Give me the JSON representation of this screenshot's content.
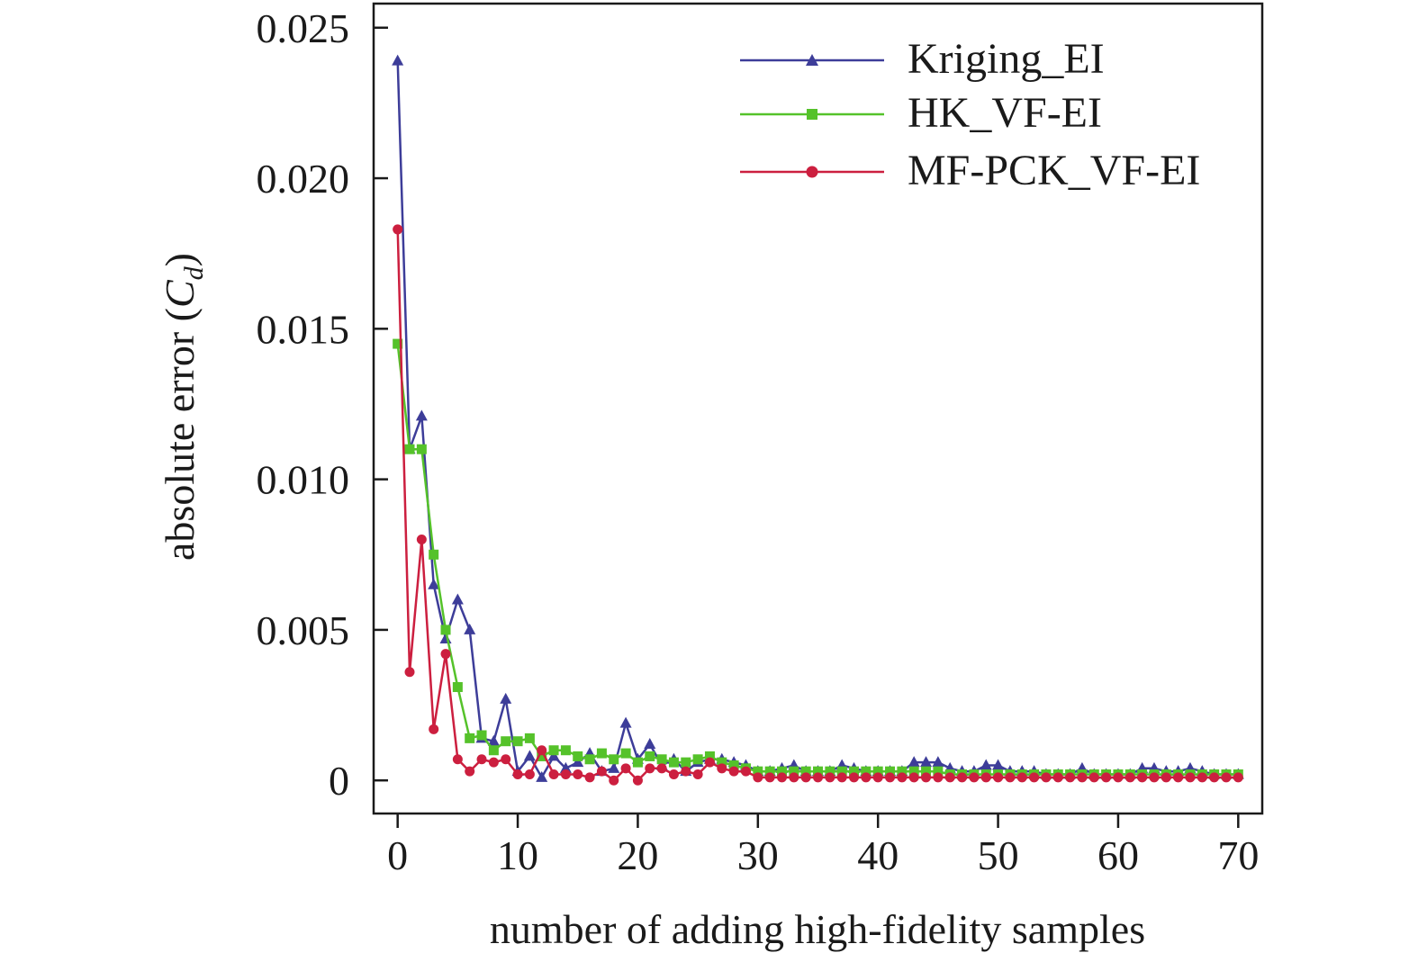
{
  "chart_data": {
    "type": "line",
    "xlabel": "number of adding high-fidelity samples",
    "ylabel_prefix": "absolute error (",
    "ylabel_symbol": "C",
    "ylabel_subscript": "d",
    "ylabel_suffix": ")",
    "xlim": [
      -2,
      72
    ],
    "ylim": [
      -0.0011,
      0.0258
    ],
    "xticks": [
      0,
      10,
      20,
      30,
      40,
      50,
      60,
      70
    ],
    "xtick_labels": [
      "0",
      "10",
      "20",
      "30",
      "40",
      "50",
      "60",
      "70"
    ],
    "yticks": [
      0,
      0.005,
      0.01,
      0.015,
      0.02,
      0.025
    ],
    "ytick_labels": [
      "0",
      "0.005",
      "0.010",
      "0.015",
      "0.020",
      "0.025"
    ],
    "grid": false,
    "legend_position": "top-right",
    "series": [
      {
        "name": "Kriging_EI",
        "color": "#3d3d99",
        "marker": "triangle",
        "x": [
          0,
          1,
          2,
          3,
          4,
          5,
          6,
          7,
          8,
          9,
          10,
          11,
          12,
          13,
          14,
          15,
          16,
          17,
          18,
          19,
          20,
          21,
          22,
          23,
          24,
          25,
          26,
          27,
          28,
          29,
          30,
          31,
          32,
          33,
          34,
          35,
          36,
          37,
          38,
          39,
          40,
          41,
          42,
          43,
          44,
          45,
          46,
          47,
          48,
          49,
          50,
          51,
          52,
          53,
          54,
          55,
          56,
          57,
          58,
          59,
          60,
          61,
          62,
          63,
          64,
          65,
          66,
          67,
          68,
          69,
          70
        ],
        "y": [
          0.0239,
          0.011,
          0.0121,
          0.0065,
          0.0047,
          0.006,
          0.005,
          0.0014,
          0.0013,
          0.0027,
          0.0003,
          0.0008,
          0.0001,
          0.0008,
          0.0004,
          0.0006,
          0.0009,
          0.0003,
          0.0004,
          0.0019,
          0.0007,
          0.0012,
          0.0005,
          0.0007,
          0.0003,
          0.0006,
          0.0007,
          0.0007,
          0.0006,
          0.0005,
          0.0003,
          0.0003,
          0.0004,
          0.0005,
          0.0003,
          0.0003,
          0.0003,
          0.0005,
          0.0004,
          0.0003,
          0.0003,
          0.0003,
          0.0003,
          0.0006,
          0.0006,
          0.0006,
          0.0004,
          0.0003,
          0.0003,
          0.0005,
          0.0005,
          0.0003,
          0.0003,
          0.0003,
          0.0002,
          0.0002,
          0.0002,
          0.0004,
          0.0002,
          0.0002,
          0.0002,
          0.0002,
          0.0004,
          0.0004,
          0.0003,
          0.0003,
          0.0004,
          0.0003,
          0.0002,
          0.0002,
          0.0002
        ]
      },
      {
        "name": "HK_VF-EI",
        "color": "#55c22a",
        "marker": "square",
        "x": [
          0,
          1,
          2,
          3,
          4,
          5,
          6,
          7,
          8,
          9,
          10,
          11,
          12,
          13,
          14,
          15,
          16,
          17,
          18,
          19,
          20,
          21,
          22,
          23,
          24,
          25,
          26,
          27,
          28,
          29,
          30,
          31,
          32,
          33,
          34,
          35,
          36,
          37,
          38,
          39,
          40,
          41,
          42,
          43,
          44,
          45,
          46,
          47,
          48,
          49,
          50,
          51,
          52,
          53,
          54,
          55,
          56,
          57,
          58,
          59,
          60,
          61,
          62,
          63,
          64,
          65,
          66,
          67,
          68,
          69,
          70
        ],
        "y": [
          0.0145,
          0.011,
          0.011,
          0.0075,
          0.005,
          0.0031,
          0.0014,
          0.0015,
          0.001,
          0.0013,
          0.0013,
          0.0014,
          0.0008,
          0.001,
          0.001,
          0.0008,
          0.0007,
          0.0009,
          0.0007,
          0.0009,
          0.0006,
          0.0008,
          0.0007,
          0.0006,
          0.0006,
          0.0007,
          0.0008,
          0.0006,
          0.0005,
          0.0004,
          0.0003,
          0.0003,
          0.0003,
          0.0003,
          0.0003,
          0.0003,
          0.0003,
          0.0003,
          0.0003,
          0.0003,
          0.0003,
          0.0003,
          0.0003,
          0.0003,
          0.0003,
          0.0003,
          0.0002,
          0.0002,
          0.0002,
          0.0002,
          0.0002,
          0.0002,
          0.0002,
          0.0002,
          0.0002,
          0.0002,
          0.0002,
          0.0002,
          0.0002,
          0.0002,
          0.0002,
          0.0002,
          0.0002,
          0.0002,
          0.0002,
          0.0002,
          0.0002,
          0.0002,
          0.0002,
          0.0002,
          0.0002
        ]
      },
      {
        "name": "MF-PCK_VF-EI",
        "color": "#cc1f3f",
        "marker": "circle",
        "x": [
          0,
          1,
          2,
          3,
          4,
          5,
          6,
          7,
          8,
          9,
          10,
          11,
          12,
          13,
          14,
          15,
          16,
          17,
          18,
          19,
          20,
          21,
          22,
          23,
          24,
          25,
          26,
          27,
          28,
          29,
          30,
          31,
          32,
          33,
          34,
          35,
          36,
          37,
          38,
          39,
          40,
          41,
          42,
          43,
          44,
          45,
          46,
          47,
          48,
          49,
          50,
          51,
          52,
          53,
          54,
          55,
          56,
          57,
          58,
          59,
          60,
          61,
          62,
          63,
          64,
          65,
          66,
          67,
          68,
          69,
          70
        ],
        "y": [
          0.0183,
          0.0036,
          0.008,
          0.0017,
          0.0042,
          0.0007,
          0.0003,
          0.0007,
          0.0006,
          0.0007,
          0.0002,
          0.0002,
          0.001,
          0.0002,
          0.0002,
          0.0002,
          0.0001,
          0.0003,
          0.0,
          0.0004,
          0.0,
          0.0004,
          0.0004,
          0.0002,
          0.0003,
          0.0002,
          0.0006,
          0.0004,
          0.0003,
          0.0003,
          0.0001,
          0.0001,
          0.0001,
          0.0001,
          0.0001,
          0.0001,
          0.0001,
          0.0001,
          0.0001,
          0.0001,
          0.0001,
          0.0001,
          0.0001,
          0.0001,
          0.0001,
          0.0001,
          0.0001,
          0.0001,
          0.0001,
          0.0001,
          0.0001,
          0.0001,
          0.0001,
          0.0001,
          0.0001,
          0.0001,
          0.0001,
          0.0001,
          0.0001,
          0.0001,
          0.0001,
          0.0001,
          0.0001,
          0.0001,
          0.0001,
          0.0001,
          0.0001,
          0.0001,
          0.0001,
          0.0001,
          0.0001
        ]
      }
    ]
  }
}
